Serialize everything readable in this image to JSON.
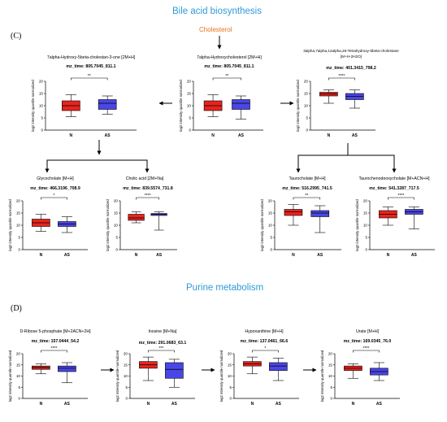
{
  "sections": [
    {
      "id": "bile",
      "title": "Bile acid biosynthesis",
      "letter": "(C)"
    },
    {
      "id": "purine",
      "title": "Purine metabolism",
      "letter": "(D)"
    }
  ],
  "cholesterol_label": "Cholesterol",
  "y_axis_label": "log2 intensity quantile normalized",
  "colors": {
    "N": "#e8241e",
    "AS": "#4a46e6",
    "section_title": "#2e9bd6",
    "cholesterol": "#e8701c"
  },
  "chart_data": [
    {
      "id": "c1",
      "type": "box",
      "title": "7alpha-Hydroxy-5beta-cholestan-3-one [2M+H]",
      "subtitle": "mz_time: 805.7045_811.1",
      "significance": "**",
      "categories": [
        "N",
        "AS"
      ],
      "ylim": [
        0,
        20
      ],
      "yticks": [
        0,
        5,
        10,
        15,
        20
      ],
      "series": [
        {
          "name": "N",
          "min": 5.5,
          "q1": 8,
          "median": 10,
          "q3": 12,
          "max": 14.5
        },
        {
          "name": "AS",
          "min": 6.5,
          "q1": 8.5,
          "median": 11,
          "q3": 12.5,
          "max": 14
        }
      ]
    },
    {
      "id": "c2",
      "type": "box",
      "title": "7alpha-Hydroxycholesterol [2M+H]",
      "subtitle": "mz_time: 805.7045_811.1",
      "significance": "**",
      "categories": [
        "N",
        "AS"
      ],
      "ylim": [
        0,
        20
      ],
      "yticks": [
        0,
        5,
        10,
        15,
        20
      ],
      "series": [
        {
          "name": "N",
          "min": 5.5,
          "q1": 8,
          "median": 10,
          "q3": 12,
          "max": 14.5
        },
        {
          "name": "AS",
          "min": 4.5,
          "q1": 8.5,
          "median": 11,
          "q3": 12.5,
          "max": 14
        }
      ]
    },
    {
      "id": "c3",
      "type": "box",
      "title": "3alpha,7alpha,12alpha,26-Tetrahydroxy-5beta-cholestane [M+H-2H2O]",
      "subtitle": "mz_time: 401.3415_798.2",
      "significance": "****",
      "categories": [
        "N",
        "AS"
      ],
      "ylim": [
        0,
        20
      ],
      "yticks": [
        0,
        5,
        10,
        15,
        20
      ],
      "series": [
        {
          "name": "N",
          "min": 11,
          "q1": 14,
          "median": 14.8,
          "q3": 15.5,
          "max": 16.5
        },
        {
          "name": "AS",
          "min": 9,
          "q1": 12.5,
          "median": 13.8,
          "q3": 15,
          "max": 16.5
        }
      ]
    },
    {
      "id": "c4",
      "type": "box",
      "title": "Glycocholate [M+H]",
      "subtitle": "mz_time: 466.3196_708.9",
      "significance": "*",
      "categories": [
        "N",
        "AS"
      ],
      "ylim": [
        0,
        20
      ],
      "yticks": [
        0,
        5,
        10,
        15,
        20
      ],
      "series": [
        {
          "name": "N",
          "min": 7.5,
          "q1": 9.5,
          "median": 11,
          "q3": 12.5,
          "max": 14.5
        },
        {
          "name": "AS",
          "min": 7,
          "q1": 9.5,
          "median": 10.5,
          "q3": 11.5,
          "max": 13.5
        }
      ]
    },
    {
      "id": "c5",
      "type": "box",
      "title": "Cholic acid [2M+Na]",
      "subtitle": "mz_time: 839.5574_731.8",
      "significance": "****",
      "categories": [
        "N",
        "AS"
      ],
      "ylim": [
        0,
        20
      ],
      "yticks": [
        0,
        5,
        10,
        15,
        20
      ],
      "series": [
        {
          "name": "N",
          "min": 11,
          "q1": 12,
          "median": 13,
          "q3": 14.5,
          "max": 15.5
        },
        {
          "name": "AS",
          "min": 8,
          "q1": 14,
          "median": 14.5,
          "q3": 14.8,
          "max": 15.5
        }
      ]
    },
    {
      "id": "c6",
      "type": "box",
      "title": "Taurocholate [M+H]",
      "subtitle": "mz_time: 516.2995_741.5",
      "significance": "**",
      "categories": [
        "N",
        "AS"
      ],
      "ylim": [
        0,
        20
      ],
      "yticks": [
        0,
        5,
        10,
        15,
        20
      ],
      "series": [
        {
          "name": "N",
          "min": 10,
          "q1": 14,
          "median": 15.5,
          "q3": 16.5,
          "max": 18.5
        },
        {
          "name": "AS",
          "min": 7,
          "q1": 13.5,
          "median": 15,
          "q3": 16,
          "max": 18
        }
      ]
    },
    {
      "id": "c7",
      "type": "box",
      "title": "Taurochenodeoxycholate [M+ACN+H]",
      "subtitle": "mz_time: 541.3287_717.5",
      "significance": "****",
      "categories": [
        "N",
        "AS"
      ],
      "ylim": [
        0,
        20
      ],
      "yticks": [
        0,
        5,
        10,
        15,
        20
      ],
      "series": [
        {
          "name": "N",
          "min": 10,
          "q1": 13,
          "median": 14.5,
          "q3": 16,
          "max": 17.5
        },
        {
          "name": "AS",
          "min": 8.5,
          "q1": 14.5,
          "median": 15.5,
          "q3": 16.5,
          "max": 17.5
        }
      ]
    },
    {
      "id": "c8",
      "type": "box",
      "title": "D-Ribose 5-phosphate [M+2ACN+2H]",
      "subtitle": "mz_time: 157.0444_54.2",
      "significance": "****",
      "categories": [
        "N",
        "AS"
      ],
      "ylim": [
        0,
        20
      ],
      "yticks": [
        0,
        5,
        10,
        15,
        20
      ],
      "series": [
        {
          "name": "N",
          "min": 11,
          "q1": 13,
          "median": 13.8,
          "q3": 14.5,
          "max": 15.5
        },
        {
          "name": "AS",
          "min": 7,
          "q1": 12,
          "median": 13.5,
          "q3": 14.5,
          "max": 16
        }
      ]
    },
    {
      "id": "c9",
      "type": "box",
      "title": "Inosine [M+Na]",
      "subtitle": "mz_time: 291.0683_63.1",
      "significance": "***",
      "categories": [
        "N",
        "AS"
      ],
      "ylim": [
        0,
        20
      ],
      "yticks": [
        0,
        5,
        10,
        15,
        20
      ],
      "series": [
        {
          "name": "N",
          "min": 8,
          "q1": 13.5,
          "median": 15,
          "q3": 16.5,
          "max": 18.5
        },
        {
          "name": "AS",
          "min": 5,
          "q1": 9,
          "median": 13,
          "q3": 16,
          "max": 17.5
        }
      ]
    },
    {
      "id": "c10",
      "type": "box",
      "title": "Hypoxanthine [M+H]",
      "subtitle": "mz_time: 137.0461_66.6",
      "significance": "*",
      "categories": [
        "N",
        "AS"
      ],
      "ylim": [
        0,
        20
      ],
      "yticks": [
        0,
        5,
        10,
        15,
        20
      ],
      "series": [
        {
          "name": "N",
          "min": 11,
          "q1": 14.5,
          "median": 15.5,
          "q3": 16.5,
          "max": 18.5
        },
        {
          "name": "AS",
          "min": 8,
          "q1": 12.5,
          "median": 14.5,
          "q3": 16,
          "max": 18
        }
      ]
    },
    {
      "id": "c11",
      "type": "box",
      "title": "Urate [M+H]",
      "subtitle": "mz_time: 169.0345_76.0",
      "significance": "****",
      "categories": [
        "N",
        "AS"
      ],
      "ylim": [
        0,
        20
      ],
      "yticks": [
        0,
        5,
        10,
        15,
        20
      ],
      "series": [
        {
          "name": "N",
          "min": 9,
          "q1": 12.5,
          "median": 13.5,
          "q3": 14.5,
          "max": 15.5
        },
        {
          "name": "AS",
          "min": 8,
          "q1": 10.5,
          "median": 12,
          "q3": 13.5,
          "max": 16
        }
      ]
    }
  ]
}
